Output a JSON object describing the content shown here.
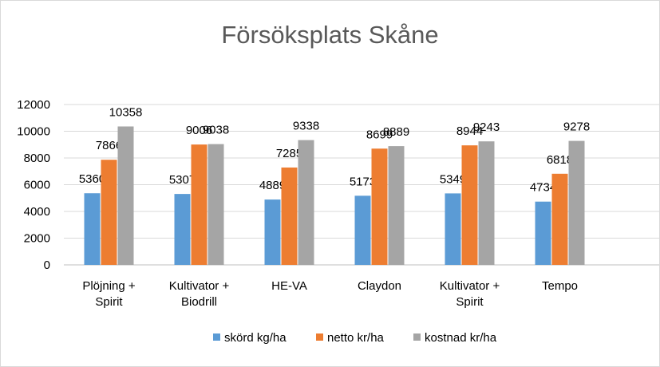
{
  "chart_data": {
    "type": "bar",
    "title": "Försöksplats Skåne",
    "categories": [
      [
        "Plöjning +",
        "Spirit"
      ],
      [
        "Kultivator +",
        "Biodrill"
      ],
      [
        "HE-VA"
      ],
      [
        "Claydon"
      ],
      [
        "Kultivator +",
        "Spirit"
      ],
      [
        "Tempo"
      ]
    ],
    "series": [
      {
        "name": "skörd kg/ha",
        "color": "#5b9bd5",
        "values": [
          5360,
          5307,
          4889,
          5173,
          5349,
          4734
        ]
      },
      {
        "name": "netto kr/ha",
        "color": "#ed7d31",
        "values": [
          7866,
          9006,
          7285,
          8699,
          8944,
          6818
        ]
      },
      {
        "name": "kostnad kr/ha",
        "color": "#a5a5a5",
        "values": [
          10358,
          9038,
          9338,
          8889,
          9243,
          9278
        ]
      }
    ],
    "ylim": [
      0,
      12000
    ],
    "yticks": [
      0,
      2000,
      4000,
      6000,
      8000,
      10000,
      12000
    ],
    "grid": true,
    "legend": "bottom"
  }
}
